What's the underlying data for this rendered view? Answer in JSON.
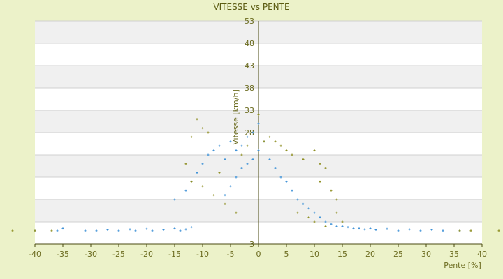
{
  "chart_data": {
    "type": "scatter",
    "title": "VITESSE vs PENTE",
    "xlabel": "Pente [%]",
    "ylabel": "Vitesse [km/h]",
    "xlim": [
      -40,
      40
    ],
    "ylim": [
      3,
      53
    ],
    "x_ticks": [
      -40,
      -35,
      -30,
      -25,
      -20,
      -15,
      -10,
      -5,
      0,
      5,
      10,
      15,
      20,
      25,
      30,
      35,
      40
    ],
    "y_ticks": [
      3,
      8,
      13,
      18,
      23,
      28,
      33,
      38,
      43,
      48,
      53
    ],
    "y_tick_labels_shown": [
      "3",
      "",
      "",
      "",
      "",
      "28",
      "33",
      "38",
      "43",
      "48",
      "53"
    ],
    "grid": true,
    "legend": "none",
    "colors": {
      "background": "#ecf2c9",
      "plot_band_light": "#ffffff",
      "plot_band_dark": "#f0f0f0",
      "grid": "#d0d0d0",
      "axis": "#4a4a10",
      "text": "#6b6b1f",
      "series_a": "#3a8fd6",
      "series_b": "#8a8a1a"
    },
    "series": [
      {
        "color": "#3a8fd6",
        "marker": "plus",
        "points": [
          [
            -40,
            6
          ],
          [
            -36,
            6
          ],
          [
            -35,
            6.5
          ],
          [
            -31,
            6
          ],
          [
            -29,
            6
          ],
          [
            -27,
            6.2
          ],
          [
            -25,
            6
          ],
          [
            -23,
            6.3
          ],
          [
            -22,
            6
          ],
          [
            -20,
            6.4
          ],
          [
            -19,
            6
          ],
          [
            -17,
            6.2
          ],
          [
            -15,
            6.5
          ],
          [
            -14,
            6
          ],
          [
            -13,
            6.3
          ],
          [
            -12,
            6.8
          ],
          [
            -15,
            13
          ],
          [
            -13,
            15
          ],
          [
            -12,
            17
          ],
          [
            -11,
            19
          ],
          [
            -10,
            21
          ],
          [
            -9,
            23
          ],
          [
            -8,
            24
          ],
          [
            -7,
            25
          ],
          [
            -6,
            22
          ],
          [
            -5,
            26
          ],
          [
            -4,
            24
          ],
          [
            -3,
            25
          ],
          [
            -2,
            27
          ],
          [
            -1,
            28
          ],
          [
            0,
            30
          ],
          [
            -6,
            14
          ],
          [
            -5,
            16
          ],
          [
            -4,
            18
          ],
          [
            -3,
            20
          ],
          [
            -2,
            21
          ],
          [
            -1,
            22
          ],
          [
            0,
            24
          ],
          [
            1,
            26
          ],
          [
            2,
            22
          ],
          [
            3,
            20
          ],
          [
            4,
            18
          ],
          [
            5,
            17
          ],
          [
            6,
            15
          ],
          [
            7,
            13
          ],
          [
            8,
            12
          ],
          [
            9,
            11
          ],
          [
            10,
            10
          ],
          [
            11,
            9
          ],
          [
            12,
            8
          ],
          [
            13,
            7.5
          ],
          [
            14,
            7
          ],
          [
            15,
            7
          ],
          [
            16,
            6.8
          ],
          [
            17,
            6.5
          ],
          [
            18,
            6.5
          ],
          [
            19,
            6.3
          ],
          [
            20,
            6.5
          ],
          [
            21,
            6.2
          ],
          [
            23,
            6.4
          ],
          [
            25,
            6
          ],
          [
            27,
            6.3
          ],
          [
            29,
            6
          ],
          [
            31,
            6.2
          ],
          [
            33,
            6
          ],
          [
            36,
            6
          ]
        ]
      },
      {
        "color": "#8a8a1a",
        "marker": "plus",
        "points": [
          [
            -44,
            6
          ],
          [
            -40,
            6
          ],
          [
            -37,
            6
          ],
          [
            -11,
            31
          ],
          [
            -10,
            29
          ],
          [
            -9,
            28
          ],
          [
            -12,
            27
          ],
          [
            -13,
            21
          ],
          [
            -12,
            17
          ],
          [
            -10,
            16
          ],
          [
            -8,
            14
          ],
          [
            -7,
            19
          ],
          [
            -6,
            12
          ],
          [
            -4,
            10
          ],
          [
            -3,
            23
          ],
          [
            -2,
            25
          ],
          [
            0,
            32
          ],
          [
            1,
            26
          ],
          [
            2,
            27
          ],
          [
            3,
            26
          ],
          [
            4,
            25
          ],
          [
            5,
            24
          ],
          [
            6,
            23
          ],
          [
            8,
            22
          ],
          [
            10,
            24
          ],
          [
            11,
            21
          ],
          [
            12,
            20
          ],
          [
            11,
            17
          ],
          [
            13,
            15
          ],
          [
            14,
            13
          ],
          [
            14,
            10
          ],
          [
            15,
            8
          ],
          [
            12,
            7
          ],
          [
            10,
            8
          ],
          [
            9,
            9
          ],
          [
            7,
            10
          ],
          [
            36,
            6
          ],
          [
            38,
            6
          ],
          [
            43,
            6
          ]
        ]
      }
    ]
  }
}
